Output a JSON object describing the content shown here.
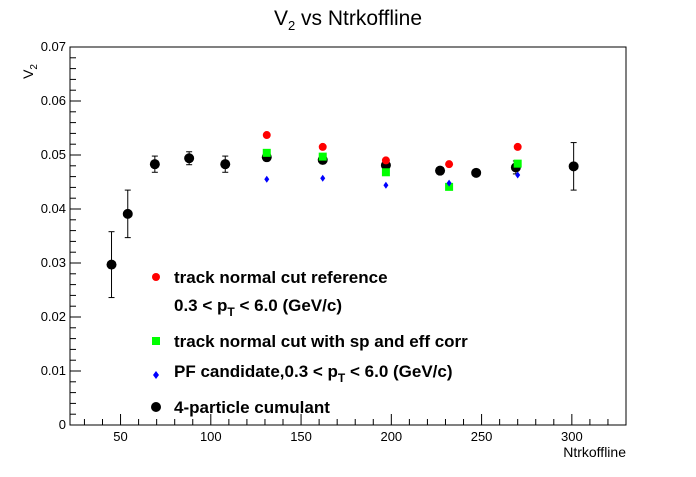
{
  "chart_data": {
    "type": "scatter",
    "title_main": "V",
    "title_sub": "2",
    "title_rest": " vs Ntrkoffline",
    "xlabel": "Ntrkoffline",
    "ylabel_main": "V",
    "ylabel_sub": "2",
    "xlim": [
      22,
      330
    ],
    "ylim": [
      0,
      0.07
    ],
    "xticks": [
      50,
      100,
      150,
      200,
      250,
      300
    ],
    "yticks": [
      0,
      0.01,
      0.02,
      0.03,
      0.04,
      0.05,
      0.06,
      0.07
    ],
    "ytick_labels": [
      "0",
      "0.01",
      "0.02",
      "0.03",
      "0.04",
      "0.05",
      "0.06",
      "0.07"
    ],
    "legend_placement": "bottom-center",
    "series": [
      {
        "name": "track normal cut reference",
        "name_line2_a": "0.3 < p",
        "name_line2_sub": "T",
        "name_line2_b": " < 6.0 (GeV/c)",
        "color": "#ff0000",
        "marker": "circle",
        "x": [
          131,
          162,
          197,
          232,
          270
        ],
        "y": [
          0.0537,
          0.0515,
          0.049,
          0.0483,
          0.0515
        ]
      },
      {
        "name": "track normal cut with sp and eff corr",
        "color": "#00ff00",
        "marker": "square",
        "x": [
          131,
          162,
          197,
          232,
          270
        ],
        "y": [
          0.0504,
          0.0497,
          0.0468,
          0.0441,
          0.0484
        ]
      },
      {
        "name_a": "PF candidate,0.3 < p",
        "name_sub": "T",
        "name_b": " < 6.0 (GeV/c)",
        "color": "#0000ff",
        "marker": "diamond",
        "x": [
          131,
          162,
          197,
          232,
          270
        ],
        "y": [
          0.0455,
          0.0457,
          0.0444,
          0.0448,
          0.0463
        ]
      },
      {
        "name": "4-particle cumulant",
        "color": "#000000",
        "marker": "circle",
        "x": [
          45,
          54,
          69,
          88,
          108,
          131,
          162,
          197,
          227,
          247,
          269,
          301
        ],
        "y": [
          0.0297,
          0.0391,
          0.0483,
          0.0494,
          0.0483,
          0.0496,
          0.0491,
          0.0481,
          0.0471,
          0.0467,
          0.0477,
          0.0479
        ],
        "yerr": [
          0.0061,
          0.0044,
          0.0015,
          0.0012,
          0.0015,
          0.0007,
          0.0007,
          0.0006,
          0.0005,
          0.0005,
          0.0012,
          0.0044
        ]
      }
    ]
  }
}
